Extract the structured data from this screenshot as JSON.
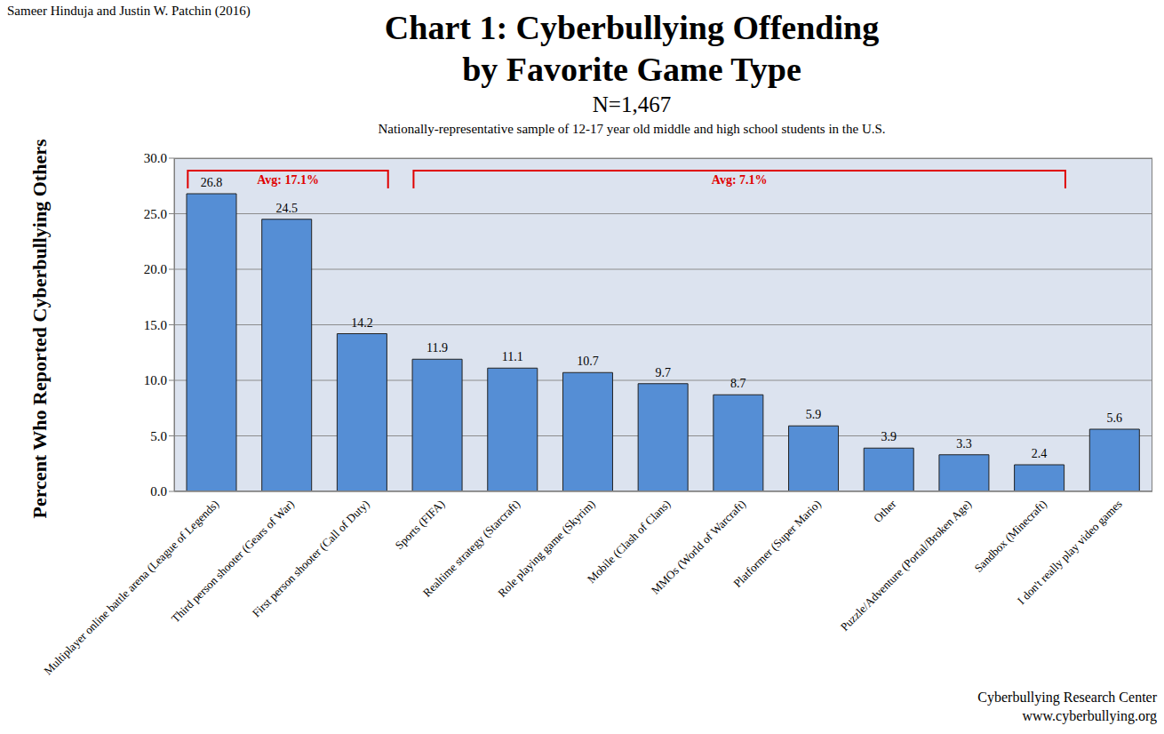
{
  "chart_data": {
    "type": "bar",
    "author": "Sameer Hinduja and Justin W. Patchin (2016)",
    "title": "Chart 1: Cyberbullying Offending\nby Favorite Game Type",
    "sample_size": "N=1,467",
    "subtitle": "Nationally-representative sample of 12-17 year old middle and high school students in the U.S.",
    "y_label": "Percent Who Reported Cyberbullying Others",
    "credit": [
      "Cyberbullying Research Center",
      "www.cyberbullying.org"
    ],
    "categories": [
      "Multiplayer online battle arena (League of Legends)",
      "Third person shooter (Gears of War)",
      "First person shooter (Call of Duty)",
      "Sports (FIFA)",
      "Realtime strategy (Starcraft)",
      "Role playing game (Skyrim)",
      "Mobile (Clash of Clans)",
      "MMOs (World of Warcraft)",
      "Platformer (Super Mario)",
      "Other",
      "Puzzle/Adventure (Portal/Broken Age)",
      "Sandbox (Minecraft)",
      "I don't really play video games"
    ],
    "values": [
      26.8,
      24.5,
      14.2,
      11.9,
      11.1,
      10.7,
      9.7,
      8.7,
      5.9,
      3.9,
      3.3,
      2.4,
      5.6
    ],
    "color": "#558ed5",
    "ylim": [
      0,
      30
    ],
    "yticks": [
      {
        "value": 0,
        "label": "0.0"
      },
      {
        "value": 5,
        "label": "5.0"
      },
      {
        "value": 10,
        "label": "10.0"
      },
      {
        "value": 15,
        "label": "15.0"
      },
      {
        "value": 20,
        "label": "20.0"
      },
      {
        "value": 25,
        "label": "25.0"
      },
      {
        "value": 30,
        "label": "30.0"
      }
    ],
    "grid": true,
    "data_labels": true,
    "annotations": [
      {
        "text": "Avg: 17.1%",
        "from": "Multiplayer online battle arena (League of Legends)",
        "to": "First person shooter (Call of Duty)",
        "color": "#e00000"
      },
      {
        "text": "Avg: 7.1%",
        "from": "Sports (FIFA)",
        "to": "Sandbox (Minecraft)",
        "color": "#e00000"
      }
    ]
  }
}
